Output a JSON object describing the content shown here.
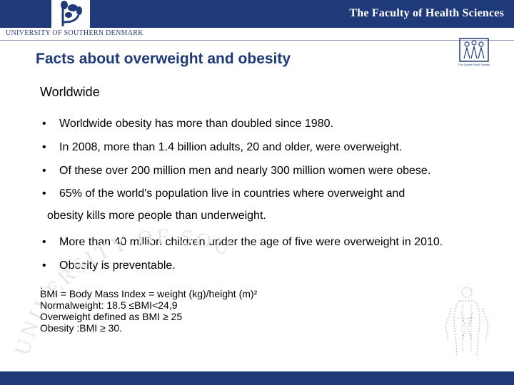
{
  "header": {
    "faculty": "The Faculty of Health Sciences",
    "university": "UNIVERSITY OF SOUTHERN DENMARK",
    "association": "The Danish Sixth Society"
  },
  "slide": {
    "title": "Facts about overweight and obesity",
    "subheading": "Worldwide",
    "bullet_symbol": "•",
    "bullets": [
      "Worldwide obesity has more than doubled since 1980.",
      "In 2008, more than 1.4 billion adults, 20 and older, were overweight.",
      "Of these over 200 million men and nearly 300 million women were obese.",
      "65% of the world's population live in countries where overweight and",
      "More than 40 million children under the age of five were overweight in 2010.",
      "Obesity is preventable."
    ],
    "continuation": "obesity kills more people than underweight.",
    "dot": ".",
    "notes": [
      "BMI = Body Mass Index = weight (kg)/height (m)²",
      "Normalweight: 18.5 ≤BMI<24,9",
      "Overweight defined as BMI ≥ 25",
      "Obesity :BMI ≥ 30."
    ],
    "watermark": "UNIVERSITY OF SOUTHERN DENMARK"
  },
  "icons": {
    "logo": "plant-logo-icon",
    "association": "family-logo-icon",
    "figure": "body-outline-icon"
  },
  "colors": {
    "brand": "#1f3a78"
  }
}
